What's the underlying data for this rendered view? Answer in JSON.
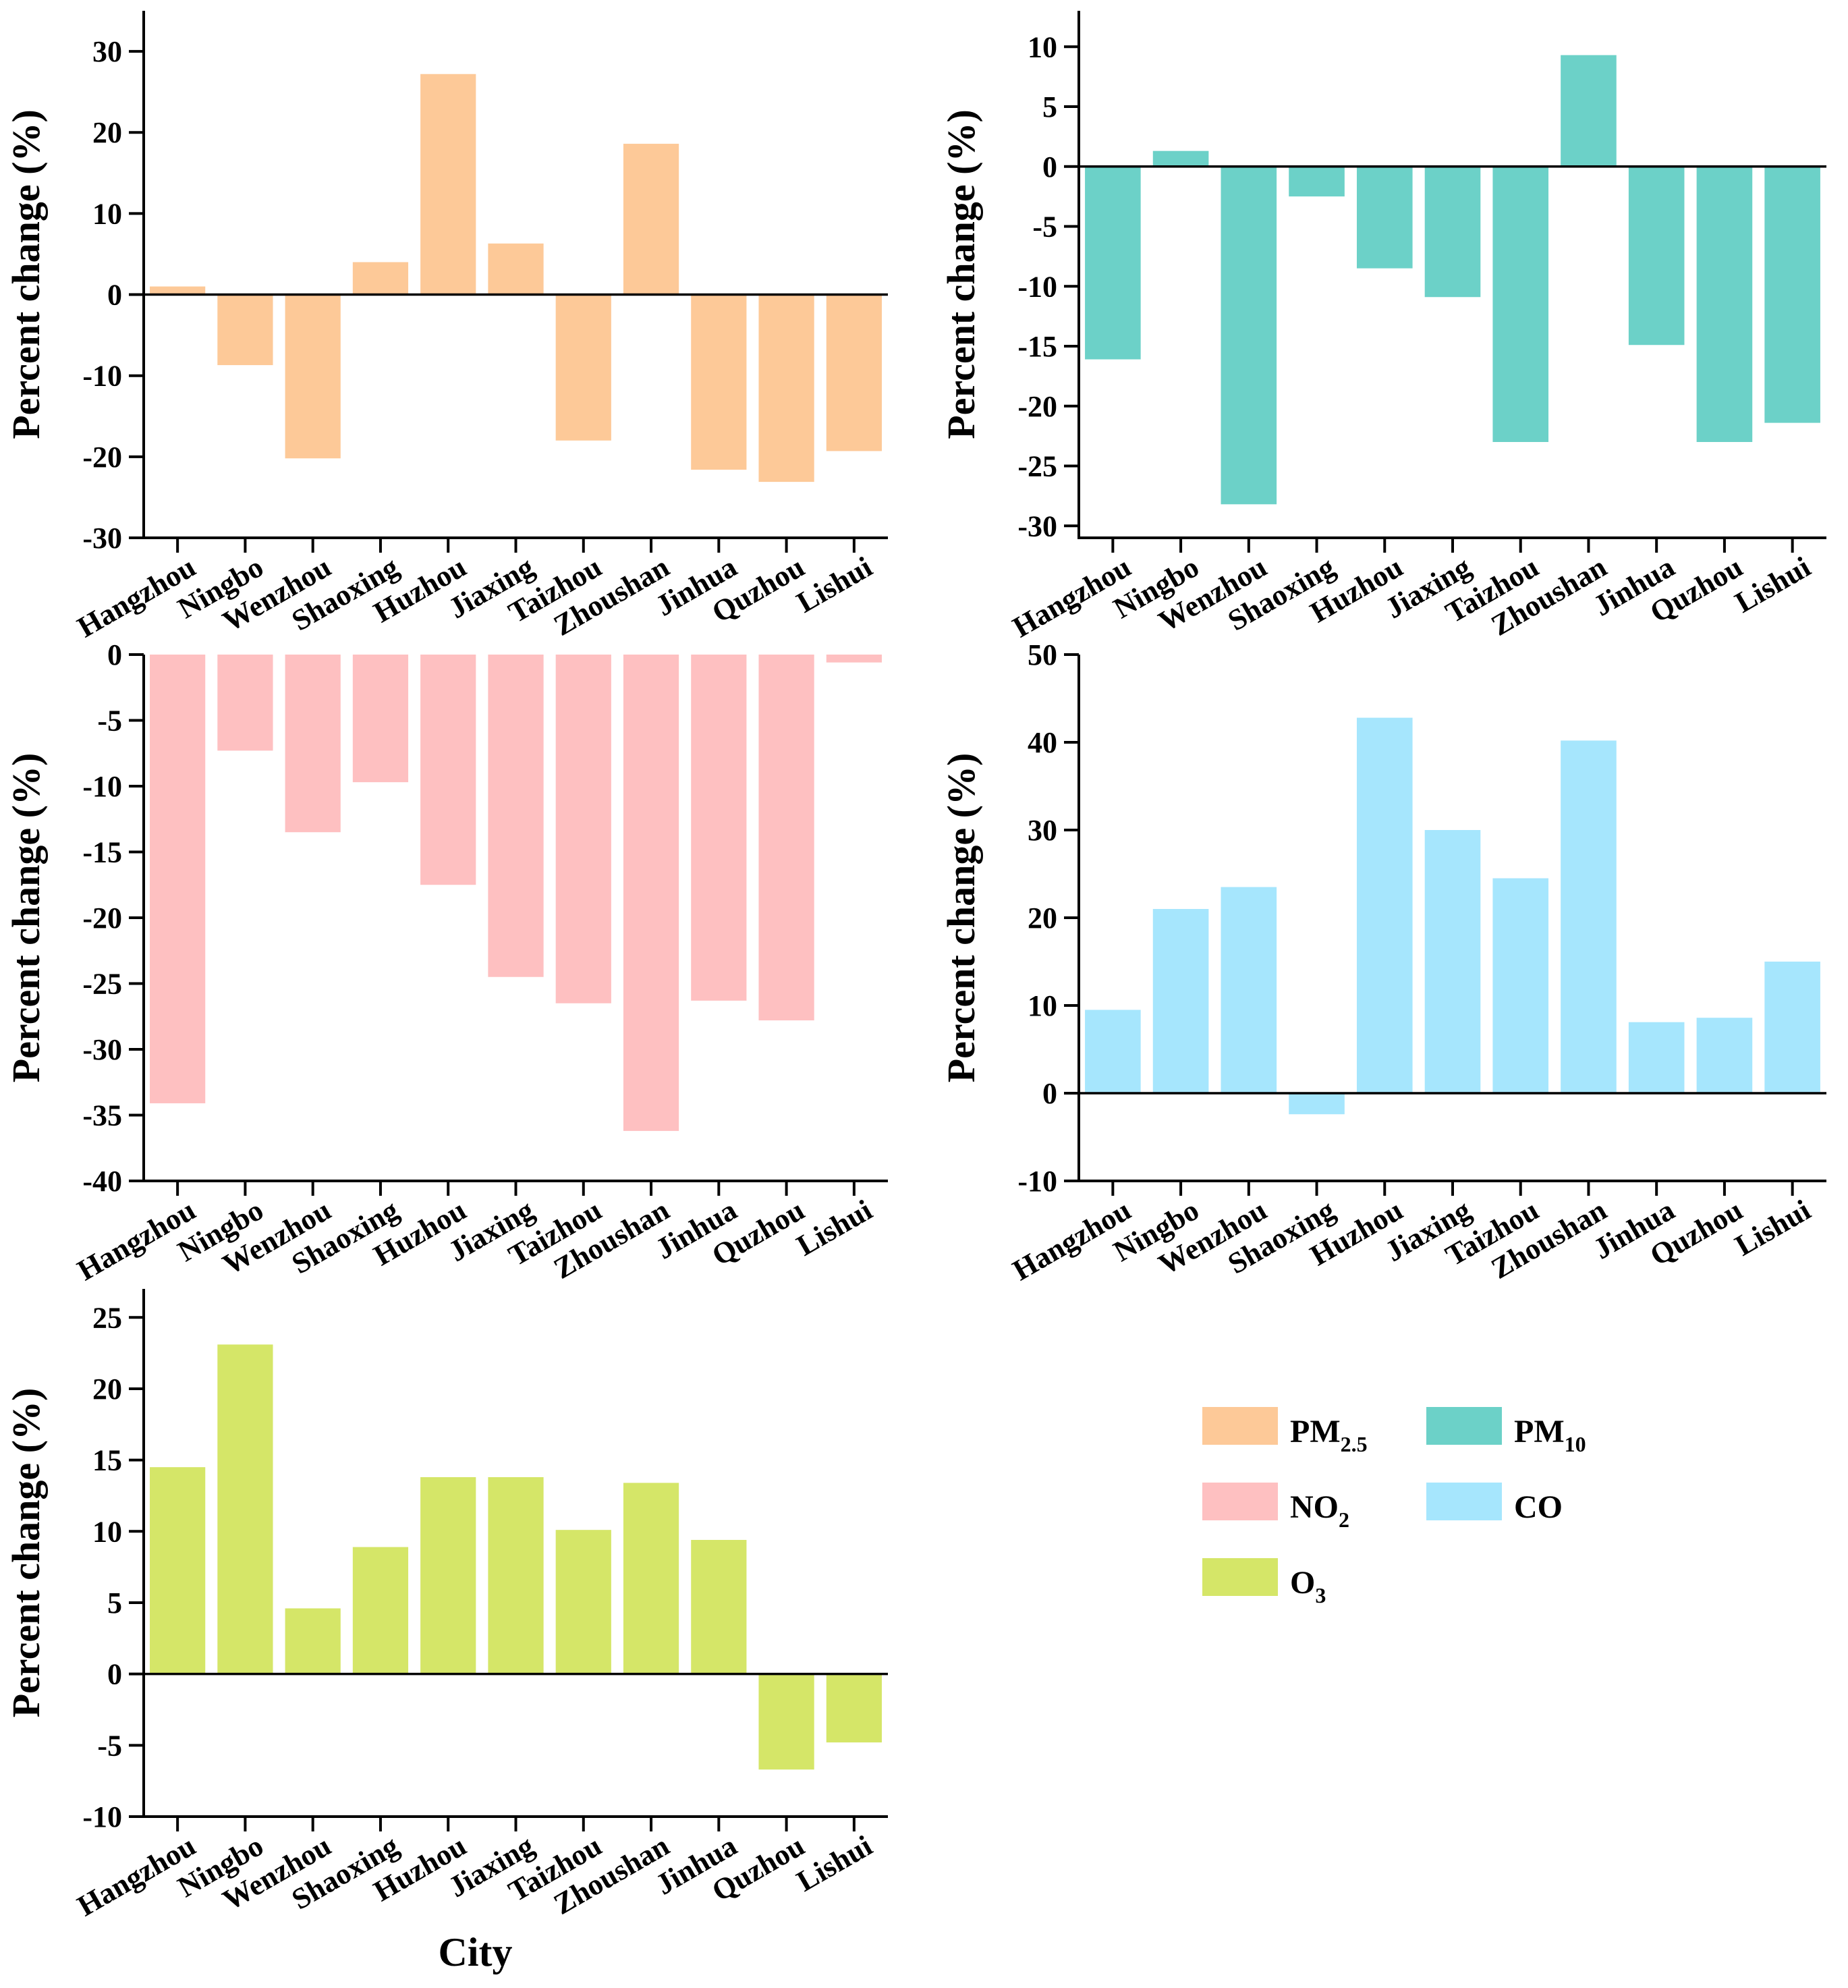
{
  "chart_data": [
    {
      "type": "bar",
      "series_name": "PM2.5",
      "color": "#FDC998",
      "categories": [
        "Hangzhou",
        "Ningbo",
        "Wenzhou",
        "Shaoxing",
        "Huzhou",
        "Jiaxing",
        "Taizhou",
        "Zhoushan",
        "Jinhua",
        "Quzhou",
        "Lishui"
      ],
      "values": [
        1.0,
        -8.7,
        -20.2,
        4.0,
        27.2,
        6.3,
        -18.0,
        18.6,
        -21.6,
        -23.1,
        -19.3
      ],
      "ylabel": "Percent change (%)",
      "xlabel": "",
      "ylim": [
        -30,
        35
      ],
      "yticks": [
        -30,
        -20,
        -10,
        0,
        10,
        20,
        30
      ],
      "ytick_labels": [
        "-30",
        "-20",
        "-10",
        "0",
        "10",
        "20",
        "30"
      ]
    },
    {
      "type": "bar",
      "series_name": "PM10",
      "color": "#6CD1C8",
      "categories": [
        "Hangzhou",
        "Ningbo",
        "Wenzhou",
        "Shaoxing",
        "Huzhou",
        "Jiaxing",
        "Taizhou",
        "Zhoushan",
        "Jinhua",
        "Quzhou",
        "Lishui"
      ],
      "values": [
        -16.1,
        1.3,
        -28.2,
        -2.5,
        -8.5,
        -10.9,
        -23.0,
        9.3,
        -14.9,
        -23.0,
        -21.4
      ],
      "ylabel": "Percent change (%)",
      "xlabel": "",
      "ylim": [
        -31,
        13
      ],
      "yticks": [
        -30,
        -25,
        -20,
        -15,
        -10,
        -5,
        0,
        5,
        10
      ],
      "ytick_labels": [
        "-30",
        "-25",
        "-20",
        "-15",
        "-10",
        "-5",
        "0",
        "5",
        "10"
      ]
    },
    {
      "type": "bar",
      "series_name": "NO2",
      "color": "#FEC0C1",
      "categories": [
        "Hangzhou",
        "Ningbo",
        "Wenzhou",
        "Shaoxing",
        "Huzhou",
        "Jiaxing",
        "Taizhou",
        "Zhoushan",
        "Jinhua",
        "Quzhou",
        "Lishui"
      ],
      "values": [
        -34.1,
        -7.3,
        -13.5,
        -9.7,
        -17.5,
        -24.5,
        -26.5,
        -36.2,
        -26.3,
        -27.8,
        -0.6
      ],
      "ylabel": "Percent change (%)",
      "xlabel": "",
      "ylim": [
        -40,
        0
      ],
      "yticks": [
        -40,
        -35,
        -30,
        -25,
        -20,
        -15,
        -10,
        -5,
        0
      ],
      "ytick_labels": [
        "-40",
        "-35",
        "-30",
        "-25",
        "-20",
        "-15",
        "-10",
        "-5",
        "0"
      ]
    },
    {
      "type": "bar",
      "series_name": "CO",
      "color": "#A6E6FD",
      "categories": [
        "Hangzhou",
        "Ningbo",
        "Wenzhou",
        "Shaoxing",
        "Huzhou",
        "Jiaxing",
        "Taizhou",
        "Zhoushan",
        "Jinhua",
        "Quzhou",
        "Lishui"
      ],
      "values": [
        9.5,
        21.0,
        23.5,
        -2.4,
        42.8,
        30.0,
        24.5,
        40.2,
        8.1,
        8.6,
        15.0
      ],
      "ylabel": "Percent change (%)",
      "xlabel": "",
      "ylim": [
        -10,
        50
      ],
      "yticks": [
        -10,
        0,
        10,
        20,
        30,
        40,
        50
      ],
      "ytick_labels": [
        "-10",
        "0",
        "10",
        "20",
        "30",
        "40",
        "50"
      ]
    },
    {
      "type": "bar",
      "series_name": "O3",
      "color": "#D5E668",
      "categories": [
        "Hangzhou",
        "Ningbo",
        "Wenzhou",
        "Shaoxing",
        "Huzhou",
        "Jiaxing",
        "Taizhou",
        "Zhoushan",
        "Jinhua",
        "Quzhou",
        "Lishui"
      ],
      "values": [
        14.5,
        23.1,
        4.6,
        8.9,
        13.8,
        13.8,
        10.1,
        13.4,
        9.4,
        -6.7,
        -4.8
      ],
      "ylabel": "Percent change (%)",
      "xlabel": "City",
      "ylim": [
        -10,
        27
      ],
      "yticks": [
        -10,
        -5,
        0,
        5,
        10,
        15,
        20,
        25
      ],
      "ytick_labels": [
        "-10",
        "-5",
        "0",
        "5",
        "10",
        "15",
        "20",
        "25"
      ]
    }
  ],
  "legend": [
    {
      "base": "PM",
      "sub": "2.5",
      "color": "#FDC998"
    },
    {
      "base": "PM",
      "sub": "10",
      "color": "#6CD1C8"
    },
    {
      "base": "NO",
      "sub": "2",
      "color": "#FEC0C1"
    },
    {
      "base": "CO",
      "sub": "",
      "color": "#A6E6FD"
    },
    {
      "base": "O",
      "sub": "3",
      "color": "#D5E668"
    }
  ]
}
